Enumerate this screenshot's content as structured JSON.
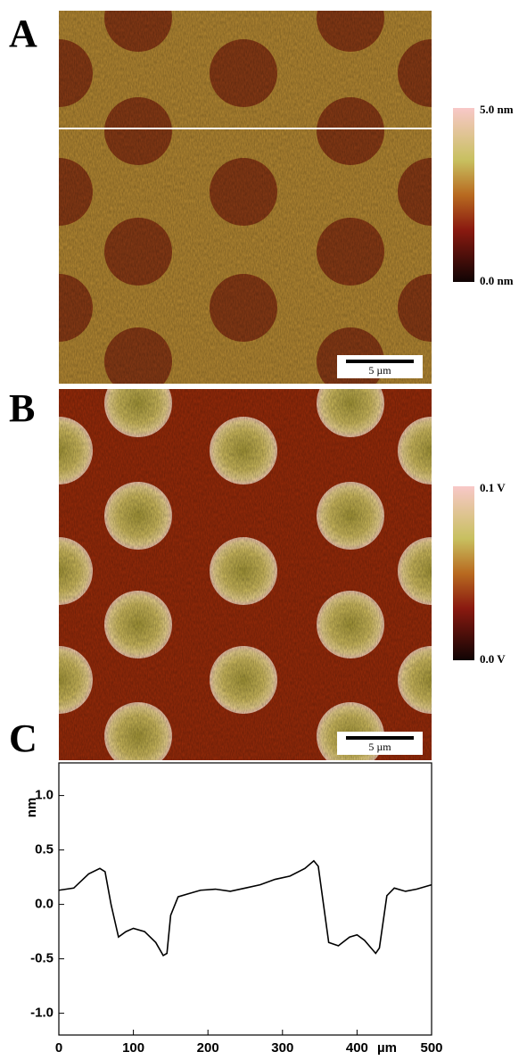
{
  "panels": [
    {
      "label": "A",
      "colorbar": {
        "max": "5.0 nm",
        "min": "0.0 nm"
      },
      "scale_bar": "5 µm"
    },
    {
      "label": "B",
      "colorbar": {
        "max": "0.1 V",
        "min": "0.0 V"
      },
      "scale_bar": "5 µm"
    }
  ],
  "chart_data": {
    "type": "line",
    "panel_label": "C",
    "y_label": "nm",
    "x_label": "µm",
    "x": [
      0,
      20,
      40,
      55,
      62,
      70,
      80,
      90,
      100,
      115,
      130,
      140,
      145,
      150,
      160,
      175,
      190,
      210,
      230,
      250,
      270,
      290,
      310,
      330,
      342,
      348,
      355,
      362,
      375,
      390,
      400,
      410,
      425,
      430,
      440,
      450,
      465,
      480,
      500
    ],
    "series": [
      {
        "color": "#000000",
        "values": [
          0.13,
          0.15,
          0.28,
          0.33,
          0.3,
          0.0,
          -0.3,
          -0.25,
          -0.22,
          -0.25,
          -0.35,
          -0.47,
          -0.45,
          -0.1,
          0.07,
          0.1,
          0.13,
          0.14,
          0.12,
          0.15,
          0.18,
          0.23,
          0.26,
          0.33,
          0.4,
          0.35,
          0.0,
          -0.35,
          -0.38,
          -0.3,
          -0.28,
          -0.33,
          -0.45,
          -0.4,
          0.08,
          0.15,
          0.12,
          0.14,
          0.18
        ]
      }
    ],
    "xlim": [
      0,
      500
    ],
    "xticks": [
      0,
      100,
      200,
      300,
      400,
      500
    ],
    "ylim": [
      -1.2,
      1.3
    ],
    "yticks": [
      {
        "value": 1,
        "label": "1.0"
      },
      {
        "value": 0.5,
        "label": "0.5"
      },
      {
        "value": 0,
        "label": "0.0"
      },
      {
        "value": -0.5,
        "label": "-0.5"
      },
      {
        "value": -1,
        "label": "-1.0"
      }
    ]
  }
}
